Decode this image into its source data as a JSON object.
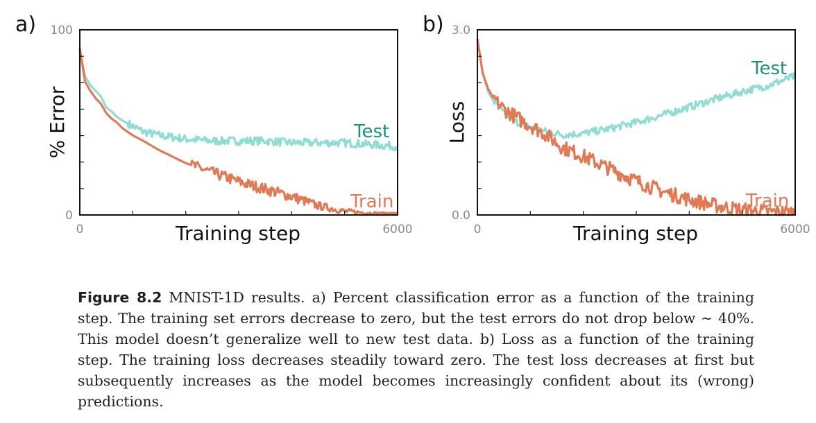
{
  "chart_data": [
    {
      "type": "line",
      "panel": "a)",
      "title": "",
      "xlabel": "Training step",
      "ylabel": "% Error",
      "xlim": [
        0,
        6000
      ],
      "ylim": [
        0,
        100
      ],
      "x_tick_labels": [
        "0",
        "6000"
      ],
      "y_tick_labels": [
        "0",
        "100"
      ],
      "grid": false,
      "series": [
        {
          "name": "Test",
          "color": "#8fdcd2",
          "label_color": "#1f8f82",
          "x": [
            0,
            100,
            200,
            300,
            400,
            500,
            600,
            700,
            800,
            1000,
            1200,
            1500,
            2000,
            2500,
            3000,
            3500,
            4000,
            4500,
            5000,
            5500,
            6000
          ],
          "y": [
            88,
            75,
            70,
            67,
            64,
            58,
            56,
            53,
            51,
            48,
            45,
            43,
            41,
            40,
            40,
            40,
            39,
            39,
            39,
            38,
            37
          ]
        },
        {
          "name": "Train",
          "color": "#e07a55",
          "label_color": "#e07a55",
          "x": [
            0,
            100,
            200,
            300,
            400,
            500,
            600,
            700,
            800,
            1000,
            1200,
            1500,
            2000,
            2500,
            3000,
            3500,
            4000,
            4500,
            5000,
            5500,
            6000
          ],
          "y": [
            90,
            72,
            67,
            63,
            60,
            55,
            52,
            50,
            47,
            43,
            40,
            35,
            28,
            23,
            18,
            14,
            10,
            5,
            2,
            1,
            1
          ]
        }
      ]
    },
    {
      "type": "line",
      "panel": "b)",
      "title": "",
      "xlabel": "Training step",
      "ylabel": "Loss",
      "xlim": [
        0,
        6000
      ],
      "ylim": [
        0,
        3.0
      ],
      "x_tick_labels": [
        "0",
        "6000"
      ],
      "y_tick_labels": [
        "0.0",
        "3.0"
      ],
      "grid": false,
      "series": [
        {
          "name": "Test",
          "color": "#8fdcd2",
          "label_color": "#1f8f82",
          "x": [
            0,
            100,
            200,
            300,
            400,
            500,
            700,
            1000,
            1300,
            1600,
            2000,
            2500,
            3000,
            3500,
            4000,
            4500,
            5000,
            5500,
            6000
          ],
          "y": [
            2.85,
            2.3,
            2.0,
            1.85,
            1.75,
            1.65,
            1.52,
            1.42,
            1.35,
            1.3,
            1.32,
            1.4,
            1.5,
            1.62,
            1.75,
            1.88,
            2.0,
            2.1,
            2.25
          ]
        },
        {
          "name": "Train",
          "color": "#e07a55",
          "label_color": "#e07a55",
          "x": [
            0,
            100,
            200,
            300,
            400,
            500,
            700,
            1000,
            1300,
            1600,
            2000,
            2500,
            3000,
            3500,
            4000,
            4500,
            5000,
            5500,
            6000
          ],
          "y": [
            2.85,
            2.3,
            2.05,
            1.9,
            1.8,
            1.72,
            1.6,
            1.45,
            1.3,
            1.1,
            0.95,
            0.75,
            0.55,
            0.38,
            0.25,
            0.15,
            0.08,
            0.05,
            0.04
          ]
        }
      ]
    }
  ],
  "caption": {
    "label": "Figure 8.2",
    "text": " MNIST-1D results. a) Percent classification error as a function of the training step. The training set errors decrease to zero, but the test errors do not drop below ∼ 40%. This model doesn’t generalize well to new test data. b) Loss as a function of the training step. The training loss decreases steadily toward zero. The test loss decreases at first but subsequently increases as the model becomes increasingly confident about its (wrong) predictions."
  }
}
